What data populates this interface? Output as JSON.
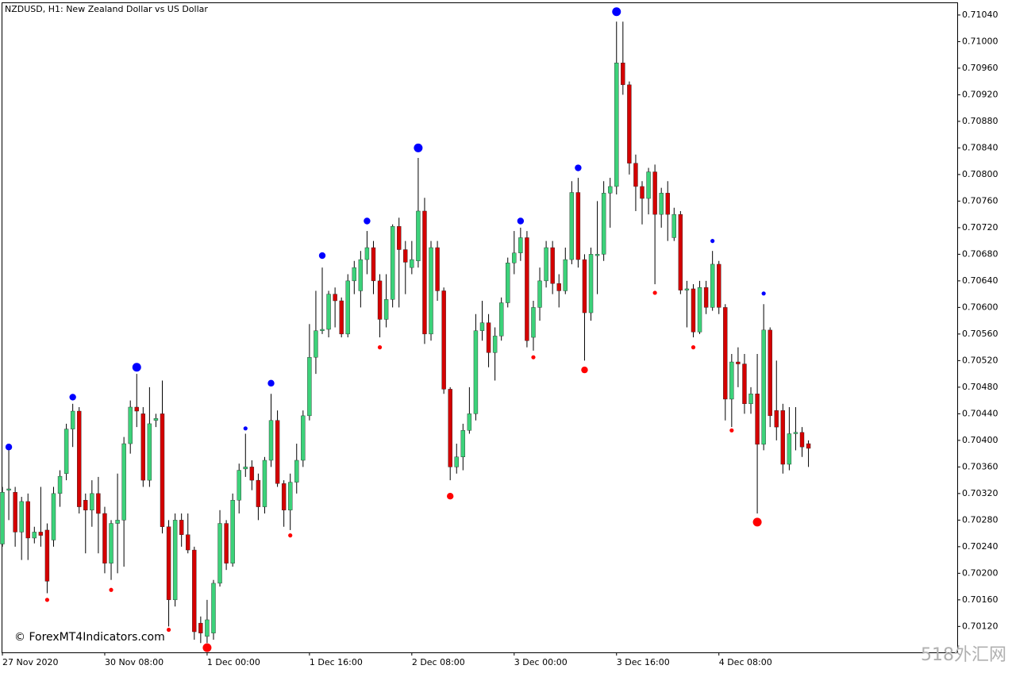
{
  "chart_data": {
    "type": "candlestick",
    "title": "NZDUSD, H1:  New Zealand Dollar vs US Dollar",
    "watermark": "© ForexMT4Indicators.com",
    "corner_mark": "518外汇网",
    "up_color": "#3cd27a",
    "down_color": "#d40000",
    "wick_color": "#000000",
    "fractal_up_color": "#0000ff",
    "fractal_down_color": "#ff0000",
    "categories": [
      "27 Nov 2020",
      null,
      null,
      null,
      null,
      null,
      null,
      null,
      null,
      null,
      null,
      null,
      null,
      null,
      null,
      null,
      "30 Nov 08:00",
      null,
      null,
      null,
      null,
      null,
      null,
      null,
      null,
      null,
      null,
      null,
      null,
      null,
      null,
      null,
      "1 Dec 00:00",
      null,
      null,
      null,
      null,
      null,
      null,
      null,
      null,
      null,
      null,
      null,
      null,
      null,
      null,
      null,
      "1 Dec 16:00",
      null,
      null,
      null,
      null,
      null,
      null,
      null,
      null,
      null,
      null,
      null,
      null,
      null,
      null,
      null,
      "2 Dec 08:00",
      null,
      null,
      null,
      null,
      null,
      null,
      null,
      null,
      null,
      null,
      null,
      null,
      null,
      null,
      null,
      "3 Dec 00:00",
      null,
      null,
      null,
      null,
      null,
      null,
      null,
      null,
      null,
      null,
      null,
      null,
      null,
      null,
      null,
      "3 Dec 16:00",
      null,
      null,
      null,
      null,
      null,
      null,
      null,
      null,
      null,
      null,
      null,
      null,
      null,
      null,
      null,
      "4 Dec 08:00",
      null,
      null,
      null,
      null,
      null,
      null,
      null,
      null,
      null,
      null,
      null,
      null,
      null,
      null
    ],
    "open": [
      0.70244,
      0.70325,
      0.70322,
      0.70262,
      0.70308,
      0.70253,
      0.70262,
      0.70265,
      0.7025,
      0.7032,
      0.7035,
      0.70417,
      0.70444,
      0.7031,
      0.70295,
      0.7032,
      0.7029,
      0.70215,
      0.70275,
      0.7028,
      0.70395,
      0.7045,
      0.7044,
      0.7034,
      0.7043,
      0.7044,
      0.7027,
      0.7016,
      0.7028,
      0.70258,
      0.70235,
      0.70125,
      0.70105,
      0.7011,
      0.70185,
      0.70275,
      0.70215,
      0.7031,
      0.70357,
      0.7036,
      0.7034,
      0.703,
      0.7037,
      0.7043,
      0.70335,
      0.70295,
      0.70337,
      0.7037,
      0.70437,
      0.70525,
      0.70565,
      0.70567,
      0.7062,
      0.7061,
      0.7056,
      0.7064,
      0.70625,
      0.70672,
      0.7069,
      0.7064,
      0.70582,
      0.70612,
      0.70722,
      0.70687,
      0.7066,
      0.7067,
      0.70745,
      0.7056,
      0.7069,
      0.70625,
      0.70477,
      0.7036,
      0.70375,
      0.70415,
      0.7044,
      0.70565,
      0.70577,
      0.70532,
      0.70557,
      0.70607,
      0.70667,
      0.70682,
      0.70705,
      0.70555,
      0.706,
      0.7064,
      0.7069,
      0.70636,
      0.70625,
      0.70672,
      0.70773,
      0.70672,
      0.70592,
      0.70678,
      0.7068,
      0.70772,
      0.70782,
      0.70968,
      0.70935,
      0.70817,
      0.70782,
      0.70764,
      0.70804,
      0.7074,
      0.70772,
      0.70705,
      0.7074,
      0.70626,
      0.70628,
      0.70563,
      0.7063,
      0.706,
      0.70665,
      0.706,
      0.70462,
      0.70518,
      0.70515,
      0.70455,
      0.7047,
      0.70394,
      0.70566,
      0.70445,
      0.70445,
      0.70364,
      0.7041,
      0.70412,
      0.70395
    ],
    "high": [
      0.7033,
      0.70388,
      0.7033,
      0.70315,
      0.7032,
      0.7027,
      0.7033,
      0.70275,
      0.7033,
      0.70355,
      0.70425,
      0.70455,
      0.7045,
      0.7032,
      0.7034,
      0.70345,
      0.703,
      0.7028,
      0.7035,
      0.70405,
      0.7046,
      0.705,
      0.7045,
      0.7048,
      0.7044,
      0.7049,
      0.7028,
      0.7029,
      0.7029,
      0.7029,
      0.7024,
      0.70135,
      0.7016,
      0.7019,
      0.70295,
      0.7028,
      0.7032,
      0.70365,
      0.7041,
      0.7037,
      0.7035,
      0.70375,
      0.7047,
      0.70445,
      0.7034,
      0.7035,
      0.70395,
      0.70445,
      0.70575,
      0.70625,
      0.7066,
      0.70625,
      0.7063,
      0.70615,
      0.7065,
      0.7067,
      0.70685,
      0.70715,
      0.707,
      0.7065,
      0.7065,
      0.70725,
      0.70735,
      0.707,
      0.707,
      0.70825,
      0.70765,
      0.707,
      0.707,
      0.7063,
      0.7048,
      0.70395,
      0.70425,
      0.7048,
      0.7059,
      0.7061,
      0.7059,
      0.7057,
      0.70615,
      0.70675,
      0.70715,
      0.7072,
      0.70715,
      0.7061,
      0.7066,
      0.707,
      0.707,
      0.7065,
      0.7069,
      0.7079,
      0.70795,
      0.7068,
      0.7069,
      0.7076,
      0.7079,
      0.70795,
      0.7103,
      0.7103,
      0.7094,
      0.7083,
      0.7079,
      0.7081,
      0.70815,
      0.7078,
      0.7079,
      0.7075,
      0.70745,
      0.7064,
      0.70635,
      0.7064,
      0.7064,
      0.70685,
      0.7067,
      0.70605,
      0.7053,
      0.7054,
      0.7053,
      0.7048,
      0.7053,
      0.70605,
      0.7057,
      0.7052,
      0.70455,
      0.7045,
      0.7045,
      0.7042,
      0.704
    ],
    "low": [
      0.7024,
      0.7028,
      0.7024,
      0.7022,
      0.7022,
      0.70245,
      0.7024,
      0.7017,
      0.7024,
      0.703,
      0.7034,
      0.7039,
      0.7029,
      0.7023,
      0.7027,
      0.7023,
      0.702,
      0.7019,
      0.702,
      0.7021,
      0.7038,
      0.7042,
      0.7033,
      0.7033,
      0.7042,
      0.7026,
      0.7012,
      0.7015,
      0.7024,
      0.7023,
      0.701,
      0.70095,
      0.70095,
      0.701,
      0.7018,
      0.70205,
      0.7021,
      0.7029,
      0.70345,
      0.70325,
      0.7028,
      0.7029,
      0.7036,
      0.7033,
      0.7027,
      0.70265,
      0.7032,
      0.7036,
      0.7043,
      0.705,
      0.7056,
      0.70555,
      0.7057,
      0.70555,
      0.70555,
      0.7062,
      0.706,
      0.7065,
      0.7062,
      0.70555,
      0.7057,
      0.706,
      0.706,
      0.7062,
      0.7065,
      0.7066,
      0.70545,
      0.7055,
      0.7061,
      0.7047,
      0.7034,
      0.7035,
      0.70355,
      0.7041,
      0.7043,
      0.7055,
      0.7051,
      0.7049,
      0.7055,
      0.706,
      0.7065,
      0.7067,
      0.7054,
      0.70535,
      0.7058,
      0.7063,
      0.7062,
      0.706,
      0.7062,
      0.70665,
      0.7066,
      0.7052,
      0.7058,
      0.7062,
      0.7067,
      0.7072,
      0.7077,
      0.7092,
      0.708,
      0.70745,
      0.70725,
      0.7074,
      0.70635,
      0.7072,
      0.707,
      0.707,
      0.7062,
      0.7057,
      0.70555,
      0.7056,
      0.7059,
      0.70595,
      0.7059,
      0.7043,
      0.7042,
      0.7048,
      0.7044,
      0.7044,
      0.7029,
      0.70385,
      0.7042,
      0.704,
      0.7035,
      0.70355,
      0.70385,
      0.70375,
      0.7036
    ],
    "close": [
      0.70322,
      0.70327,
      0.70262,
      0.70308,
      0.70253,
      0.70262,
      0.70257,
      0.70188,
      0.7032,
      0.70346,
      0.70417,
      0.70444,
      0.703,
      0.70295,
      0.7032,
      0.7029,
      0.70215,
      0.70275,
      0.7028,
      0.70395,
      0.7045,
      0.70444,
      0.7034,
      0.70425,
      0.70433,
      0.7027,
      0.7016,
      0.7028,
      0.70258,
      0.70235,
      0.70112,
      0.7011,
      0.7013,
      0.70185,
      0.70275,
      0.70215,
      0.7031,
      0.70355,
      0.7036,
      0.7034,
      0.703,
      0.7037,
      0.7043,
      0.70335,
      0.70295,
      0.70337,
      0.7037,
      0.70437,
      0.70525,
      0.70565,
      0.70567,
      0.7062,
      0.7061,
      0.7056,
      0.7064,
      0.7066,
      0.70672,
      0.7069,
      0.7064,
      0.70582,
      0.70612,
      0.70722,
      0.70687,
      0.70668,
      0.70672,
      0.70745,
      0.7056,
      0.7069,
      0.70625,
      0.70477,
      0.7036,
      0.70375,
      0.70415,
      0.7044,
      0.70565,
      0.70577,
      0.70532,
      0.70557,
      0.70607,
      0.70667,
      0.70682,
      0.70705,
      0.7055,
      0.706,
      0.7064,
      0.7069,
      0.70636,
      0.70625,
      0.70672,
      0.70773,
      0.70672,
      0.70592,
      0.7068,
      0.7068,
      0.70772,
      0.70782,
      0.70968,
      0.70935,
      0.70817,
      0.70782,
      0.70764,
      0.70804,
      0.7074,
      0.70772,
      0.7074,
      0.7074,
      0.70626,
      0.70628,
      0.70563,
      0.7063,
      0.706,
      0.70665,
      0.706,
      0.70462,
      0.70518,
      0.70515,
      0.70455,
      0.7047,
      0.70394,
      0.70566,
      0.70437,
      0.7042,
      0.70364,
      0.7041,
      0.70412,
      0.7039,
      0.70388
    ],
    "fractal_up": [
      {
        "index": 1,
        "value": 0.7039,
        "size": "medium"
      },
      {
        "index": 11,
        "value": 0.70465,
        "size": "medium"
      },
      {
        "index": 21,
        "value": 0.7051,
        "size": "large"
      },
      {
        "index": 38,
        "value": 0.70418,
        "size": "small"
      },
      {
        "index": 42,
        "value": 0.70486,
        "size": "medium"
      },
      {
        "index": 50,
        "value": 0.70678,
        "size": "medium"
      },
      {
        "index": 57,
        "value": 0.7073,
        "size": "medium"
      },
      {
        "index": 65,
        "value": 0.7084,
        "size": "large"
      },
      {
        "index": 81,
        "value": 0.7073,
        "size": "medium"
      },
      {
        "index": 90,
        "value": 0.7081,
        "size": "medium"
      },
      {
        "index": 96,
        "value": 0.71045,
        "size": "large"
      },
      {
        "index": 111,
        "value": 0.707,
        "size": "small"
      },
      {
        "index": 119,
        "value": 0.70621,
        "size": "small"
      }
    ],
    "fractal_down": [
      {
        "index": 7,
        "value": 0.7016,
        "size": "small"
      },
      {
        "index": 17,
        "value": 0.70175,
        "size": "small"
      },
      {
        "index": 26,
        "value": 0.70115,
        "size": "small"
      },
      {
        "index": 32,
        "value": 0.70088,
        "size": "large"
      },
      {
        "index": 45,
        "value": 0.70257,
        "size": "small"
      },
      {
        "index": 59,
        "value": 0.7054,
        "size": "small"
      },
      {
        "index": 70,
        "value": 0.70316,
        "size": "medium"
      },
      {
        "index": 83,
        "value": 0.70525,
        "size": "small"
      },
      {
        "index": 91,
        "value": 0.70506,
        "size": "medium"
      },
      {
        "index": 102,
        "value": 0.70622,
        "size": "small"
      },
      {
        "index": 108,
        "value": 0.7054,
        "size": "small"
      },
      {
        "index": 114,
        "value": 0.70415,
        "size": "small"
      },
      {
        "index": 118,
        "value": 0.70277,
        "size": "large"
      }
    ],
    "ylim": [
      0.70081,
      0.71059
    ],
    "yticks": [
      {
        "value": 0.7012,
        "label": "0.70120"
      },
      {
        "value": 0.7016,
        "label": "0.70160"
      },
      {
        "value": 0.702,
        "label": "0.70200"
      },
      {
        "value": 0.7024,
        "label": "0.70240"
      },
      {
        "value": 0.7028,
        "label": "0.70280"
      },
      {
        "value": 0.7032,
        "label": "0.70320"
      },
      {
        "value": 0.7036,
        "label": "0.70360"
      },
      {
        "value": 0.704,
        "label": "0.70400"
      },
      {
        "value": 0.7044,
        "label": "0.70440"
      },
      {
        "value": 0.7048,
        "label": "0.70480"
      },
      {
        "value": 0.7052,
        "label": "0.70520"
      },
      {
        "value": 0.7056,
        "label": "0.70560"
      },
      {
        "value": 0.706,
        "label": "0.70600"
      },
      {
        "value": 0.7064,
        "label": "0.70640"
      },
      {
        "value": 0.7068,
        "label": "0.70680"
      },
      {
        "value": 0.7072,
        "label": "0.70720"
      },
      {
        "value": 0.7076,
        "label": "0.70760"
      },
      {
        "value": 0.708,
        "label": "0.70800"
      },
      {
        "value": 0.7084,
        "label": "0.70840"
      },
      {
        "value": 0.7088,
        "label": "0.70880"
      },
      {
        "value": 0.7092,
        "label": "0.70920"
      },
      {
        "value": 0.7096,
        "label": "0.70960"
      },
      {
        "value": 0.71,
        "label": "0.71000"
      },
      {
        "value": 0.7104,
        "label": "0.71040"
      }
    ],
    "grid": false
  }
}
